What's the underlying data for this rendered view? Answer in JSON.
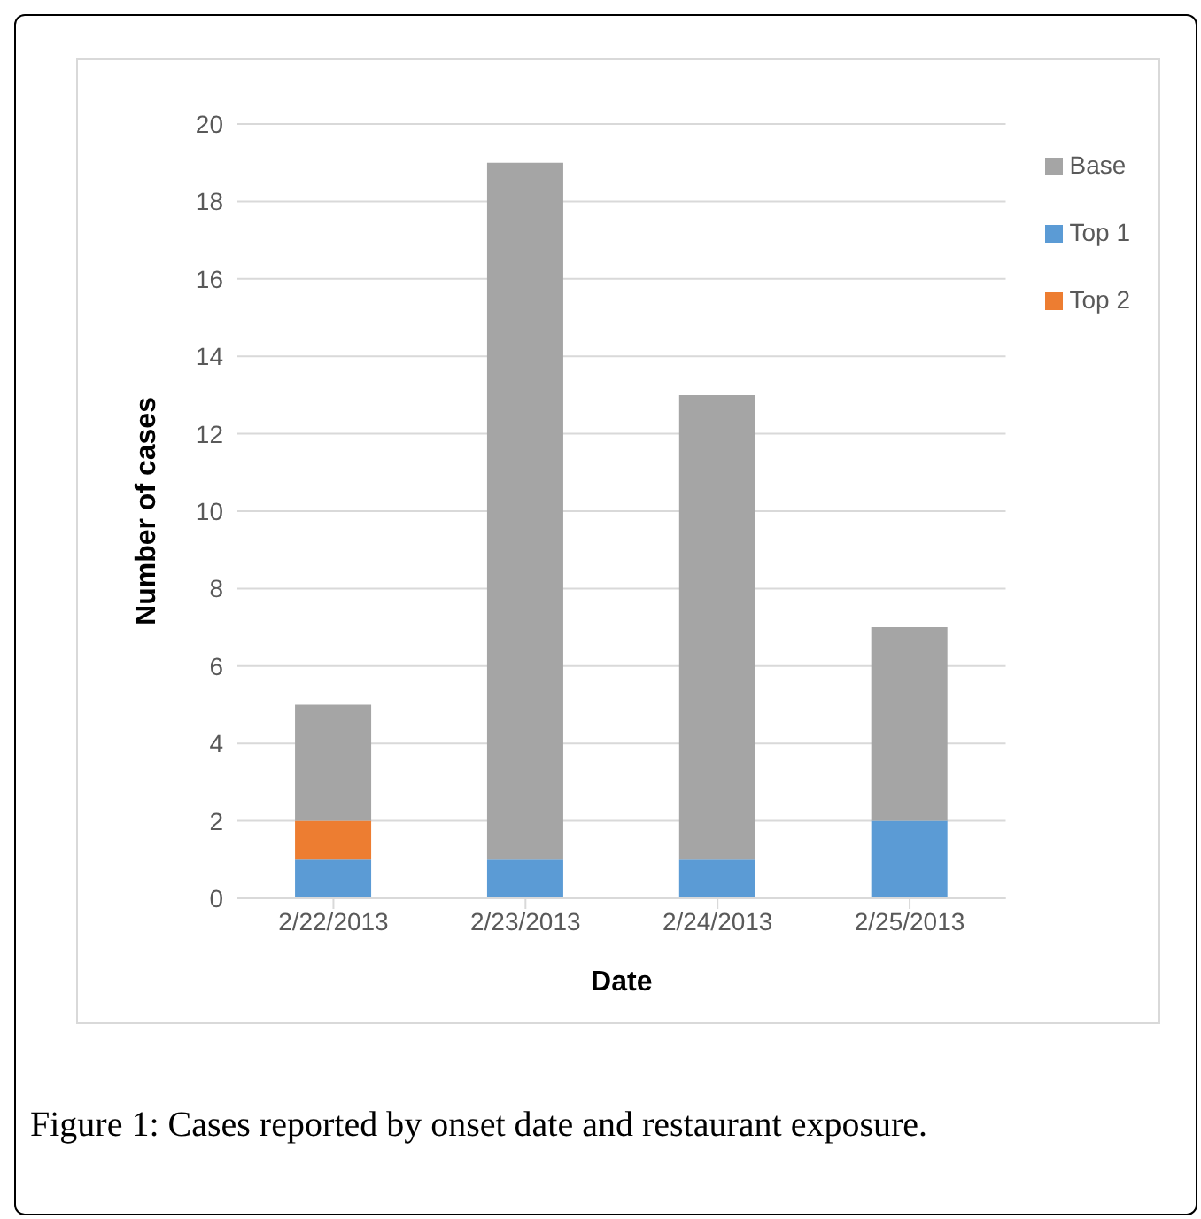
{
  "chart_data": {
    "type": "bar",
    "stacked": true,
    "xlabel": "Date",
    "ylabel": "Number of cases",
    "categories": [
      "2/22/2013",
      "2/23/2013",
      "2/24/2013",
      "2/25/2013"
    ],
    "series": [
      {
        "name": "Top 1",
        "color": "#5b9bd5",
        "values": [
          1,
          1,
          1,
          2
        ]
      },
      {
        "name": "Top 2",
        "color": "#ed7d31",
        "values": [
          1,
          0,
          0,
          0
        ]
      },
      {
        "name": "Base",
        "color": "#a5a5a5",
        "values": [
          3,
          18,
          12,
          5
        ]
      }
    ],
    "ylim": [
      0,
      20
    ],
    "yticks": [
      0,
      2,
      4,
      6,
      8,
      10,
      12,
      14,
      16,
      18,
      20
    ],
    "grid": "y",
    "legend": "top right",
    "annotations": [
      "Figure 1: Cases reported by onset date and restaurant exposure."
    ]
  }
}
